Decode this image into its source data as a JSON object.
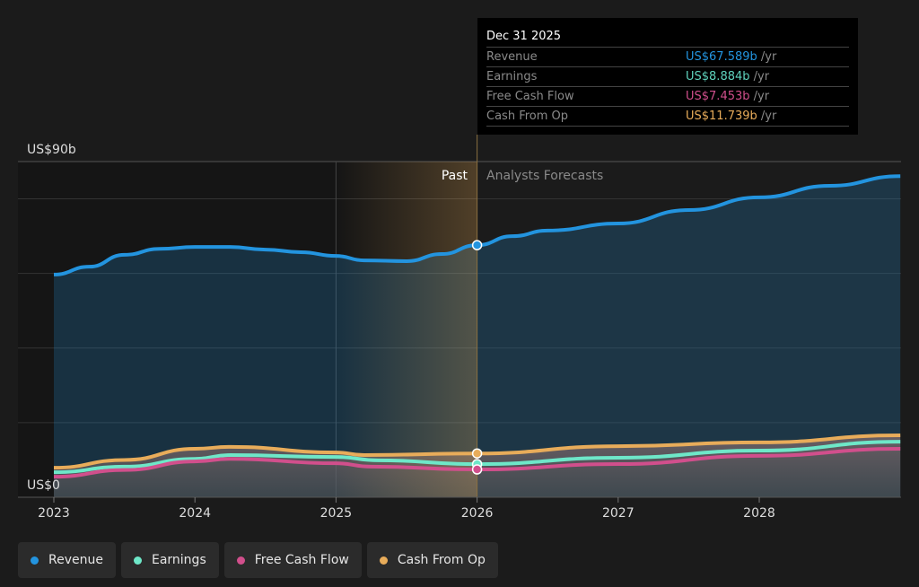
{
  "chart_data": {
    "type": "area",
    "ylim": [
      0,
      90
    ],
    "y_ticks_labeled": [
      "US$0",
      "US$90b"
    ],
    "gridlines": [
      20,
      40,
      60,
      80,
      90
    ],
    "x_ticks": [
      "2023",
      "2024",
      "2025",
      "2026",
      "2027",
      "2028"
    ],
    "xlim": [
      2023,
      2029
    ],
    "past_label": "Past",
    "forecast_label": "Analysts Forecasts",
    "divider_x": 2026,
    "series": [
      {
        "name": "Revenue",
        "color": "#2394df",
        "x": [
          2023,
          2023.25,
          2023.5,
          2023.75,
          2024,
          2024.25,
          2024.5,
          2024.75,
          2025,
          2025.2,
          2025.5,
          2025.75,
          2026,
          2026.25,
          2026.5,
          2027,
          2027.5,
          2028,
          2028.5,
          2029
        ],
        "y": [
          59.7,
          61.8,
          65,
          66.6,
          67.1,
          67.1,
          66.4,
          65.7,
          64.7,
          63.5,
          63.3,
          65.2,
          67.589,
          70,
          71.5,
          73.4,
          77,
          80.4,
          83.5,
          86.1
        ]
      },
      {
        "name": "Earnings",
        "color": "#6ee7c8",
        "x": [
          2023,
          2023.5,
          2024,
          2024.25,
          2025,
          2025.3,
          2026,
          2027,
          2028,
          2029
        ],
        "y": [
          6.7,
          8.2,
          10.3,
          11.3,
          10.8,
          9.9,
          8.884,
          10.6,
          12.5,
          14.9
        ]
      },
      {
        "name": "Free Cash Flow",
        "color": "#d14f8c",
        "x": [
          2023,
          2023.5,
          2024,
          2024.25,
          2025,
          2025.25,
          2026,
          2027,
          2028,
          2029
        ],
        "y": [
          5.5,
          7.3,
          9.6,
          10.3,
          9.1,
          8.2,
          7.453,
          8.9,
          11.1,
          13
        ]
      },
      {
        "name": "Cash From Op",
        "color": "#e8ac5a",
        "x": [
          2023,
          2023.5,
          2024,
          2024.25,
          2025,
          2025.2,
          2026,
          2027,
          2028,
          2029
        ],
        "y": [
          7.9,
          10,
          13,
          13.5,
          12,
          11.3,
          11.739,
          13.7,
          14.7,
          16.6
        ]
      }
    ]
  },
  "tooltip": {
    "date": "Dec 31 2025",
    "unit": "/yr",
    "rows": [
      {
        "label": "Revenue",
        "value": "US$67.589b",
        "color": "#2394df"
      },
      {
        "label": "Earnings",
        "value": "US$8.884b",
        "color": "#5fd3bd"
      },
      {
        "label": "Free Cash Flow",
        "value": "US$7.453b",
        "color": "#d14f8c"
      },
      {
        "label": "Cash From Op",
        "value": "US$11.739b",
        "color": "#e8ac5a"
      }
    ]
  },
  "legend": [
    {
      "label": "Revenue",
      "color": "#2394df"
    },
    {
      "label": "Earnings",
      "color": "#6ee7c8"
    },
    {
      "label": "Free Cash Flow",
      "color": "#d14f8c"
    },
    {
      "label": "Cash From Op",
      "color": "#e8ac5a"
    }
  ]
}
